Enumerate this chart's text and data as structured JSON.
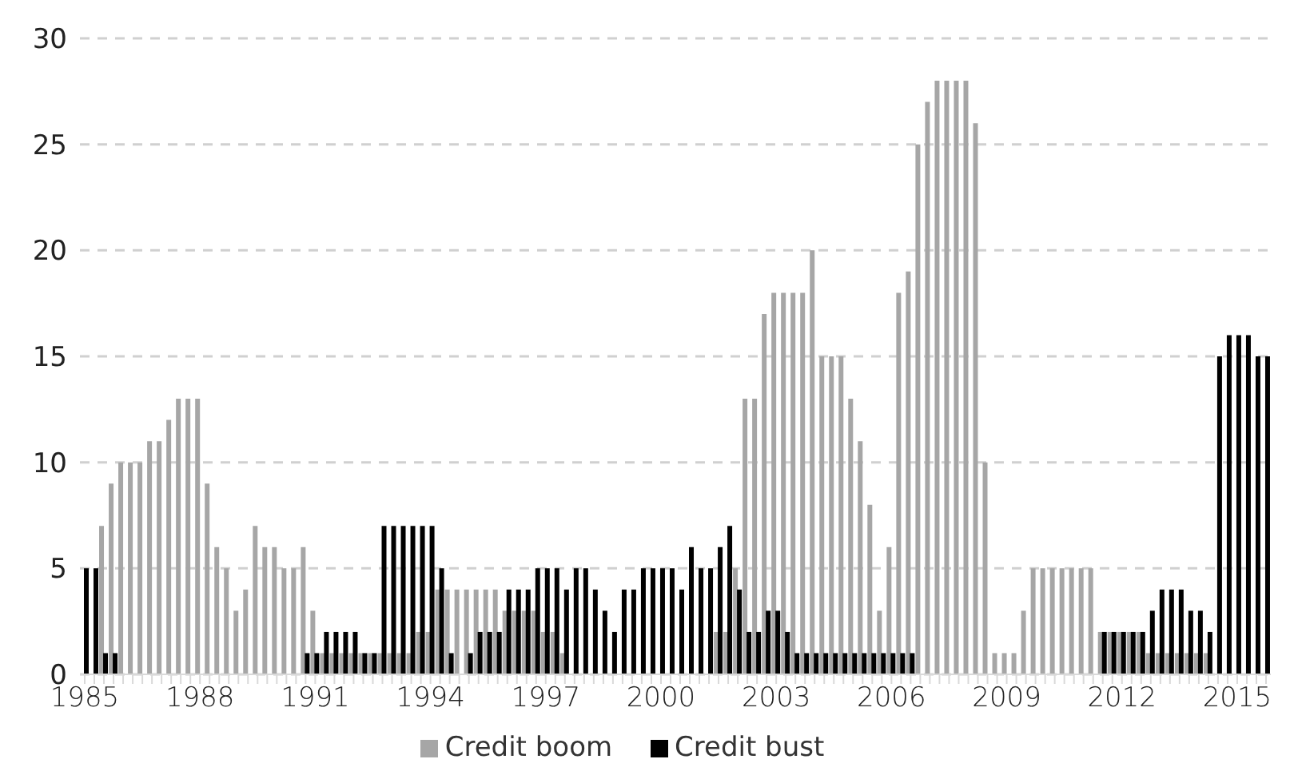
{
  "chart_data": {
    "type": "bar",
    "categories": [
      "1985",
      null,
      null,
      null,
      null,
      null,
      null,
      null,
      null,
      null,
      null,
      null,
      "1988",
      null,
      null,
      null,
      null,
      null,
      null,
      null,
      null,
      null,
      null,
      null,
      "1991",
      null,
      null,
      null,
      null,
      null,
      null,
      null,
      null,
      null,
      null,
      null,
      "1994",
      null,
      null,
      null,
      null,
      null,
      null,
      null,
      null,
      null,
      null,
      null,
      "1997",
      null,
      null,
      null,
      null,
      null,
      null,
      null,
      null,
      null,
      null,
      null,
      "2000",
      null,
      null,
      null,
      null,
      null,
      null,
      null,
      null,
      null,
      null,
      null,
      "2003",
      null,
      null,
      null,
      null,
      null,
      null,
      null,
      null,
      null,
      null,
      null,
      "2006",
      null,
      null,
      null,
      null,
      null,
      null,
      null,
      null,
      null,
      null,
      null,
      "2009",
      null,
      null,
      null,
      null,
      null,
      null,
      null,
      null,
      null,
      null,
      null,
      "2012",
      null,
      null,
      null,
      null,
      null,
      null,
      null,
      null,
      null,
      null,
      null,
      "2015",
      null,
      null,
      null
    ],
    "series": [
      {
        "name": "Credit boom",
        "color": "#a6a6a6",
        "values": [
          0,
          0,
          7,
          9,
          10,
          10,
          10,
          11,
          11,
          12,
          13,
          13,
          13,
          9,
          6,
          5,
          3,
          4,
          7,
          6,
          6,
          5,
          5,
          6,
          3,
          1,
          1,
          1,
          1,
          1,
          1,
          1,
          1,
          1,
          1,
          2,
          2,
          4,
          4,
          4,
          4,
          4,
          4,
          4,
          3,
          3,
          3,
          3,
          2,
          2,
          1,
          0,
          0,
          0,
          0,
          0,
          0,
          0,
          0,
          0,
          0,
          0,
          0,
          0,
          0,
          0,
          2,
          2,
          5,
          13,
          13,
          17,
          18,
          18,
          18,
          18,
          20,
          15,
          15,
          15,
          13,
          11,
          8,
          3,
          6,
          18,
          19,
          25,
          27,
          28,
          28,
          28,
          28,
          26,
          10,
          1,
          1,
          1,
          3,
          5,
          5,
          5,
          5,
          5,
          5,
          5,
          2,
          2,
          2,
          2,
          2,
          1,
          1,
          1,
          1,
          1,
          1,
          1,
          0,
          0,
          0,
          0,
          0,
          0
        ]
      },
      {
        "name": "Credit bust",
        "color": "#000000",
        "values": [
          5,
          5,
          1,
          1,
          0,
          0,
          0,
          0,
          0,
          0,
          0,
          0,
          0,
          0,
          0,
          0,
          0,
          0,
          0,
          0,
          0,
          0,
          0,
          1,
          1,
          2,
          2,
          2,
          2,
          1,
          1,
          7,
          7,
          7,
          7,
          7,
          7,
          5,
          1,
          0,
          1,
          2,
          2,
          2,
          4,
          4,
          4,
          5,
          5,
          5,
          4,
          5,
          5,
          4,
          3,
          2,
          4,
          4,
          5,
          5,
          5,
          5,
          4,
          6,
          5,
          5,
          6,
          7,
          4,
          2,
          2,
          3,
          3,
          2,
          1,
          1,
          1,
          1,
          1,
          1,
          1,
          1,
          1,
          1,
          1,
          1,
          1,
          0,
          0,
          0,
          0,
          0,
          0,
          0,
          0,
          0,
          0,
          0,
          0,
          0,
          0,
          0,
          0,
          0,
          0,
          0,
          2,
          2,
          2,
          2,
          2,
          3,
          4,
          4,
          4,
          3,
          3,
          2,
          15,
          16,
          16,
          16,
          15,
          15
        ]
      }
    ],
    "ylim": [
      0,
      30
    ],
    "yticks": [
      0,
      5,
      10,
      15,
      20,
      25,
      30
    ],
    "grid": "y",
    "legend": "bottom"
  }
}
